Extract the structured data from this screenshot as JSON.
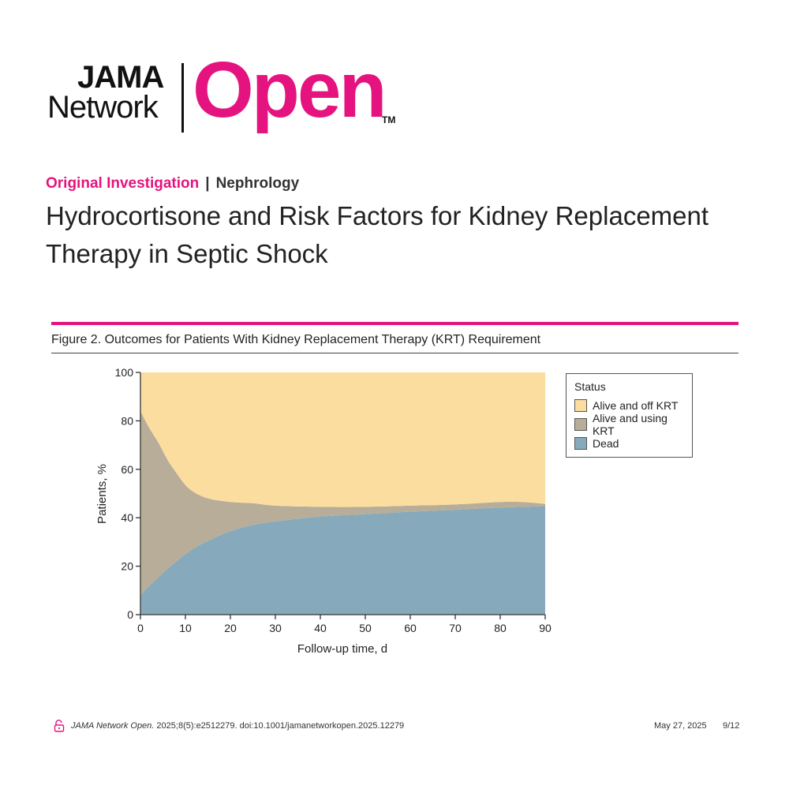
{
  "logo": {
    "line1": "JAMA",
    "line2": "Network",
    "wordmark": "Open",
    "tm": "TM"
  },
  "article": {
    "category": "Original Investigation",
    "separator": "|",
    "subject": "Nephrology",
    "title": "Hydrocortisone and Risk Factors for Kidney Replacement Therapy in Septic Shock"
  },
  "figure": {
    "caption": "Figure 2. Outcomes for Patients With Kidney Replacement Therapy (KRT) Requirement"
  },
  "chart_data": {
    "type": "area",
    "title": "",
    "xlabel": "Follow-up time, d",
    "ylabel": "Patients, %",
    "xlim": [
      0,
      90
    ],
    "ylim": [
      0,
      100
    ],
    "xticks": [
      0,
      10,
      20,
      30,
      40,
      50,
      60,
      70,
      80,
      90
    ],
    "yticks": [
      0,
      20,
      40,
      60,
      80,
      100
    ],
    "stacked": true,
    "legend_title": "Status",
    "legend_position": "right",
    "x": [
      0,
      2,
      4,
      6,
      8,
      10,
      12,
      15,
      20,
      25,
      30,
      40,
      50,
      60,
      70,
      80,
      85,
      90
    ],
    "series": [
      {
        "name": "Dead",
        "color": "#86aabb",
        "values": [
          8,
          12,
          15.5,
          19,
          22,
          25,
          27.5,
          30.5,
          34.5,
          37,
          38.5,
          40.5,
          41.5,
          42.5,
          43.3,
          44.2,
          44.5,
          44.8
        ]
      },
      {
        "name": "Alive and using KRT",
        "color": "#b8ad98",
        "values": [
          76,
          65,
          55.5,
          45,
          36.5,
          28.5,
          23,
          17.5,
          12,
          9,
          6.5,
          4,
          3,
          2.5,
          2.2,
          2.3,
          2,
          0.9
        ]
      },
      {
        "name": "Alive and off KRT",
        "color": "#fbde9f",
        "values": [
          16,
          23,
          29,
          36,
          41.5,
          46.5,
          49.5,
          52,
          53.5,
          54,
          55,
          55.5,
          55.5,
          55,
          54.5,
          53.5,
          53.5,
          54.3
        ]
      }
    ]
  },
  "footer": {
    "citation_journal": "JAMA Network Open.",
    "citation_rest": "2025;8(5):e2512279. doi:10.1001/jamanetworkopen.2025.12279",
    "date": "May 27, 2025",
    "page": "9/12"
  },
  "icons": {
    "open_access": "lock-open-icon"
  }
}
